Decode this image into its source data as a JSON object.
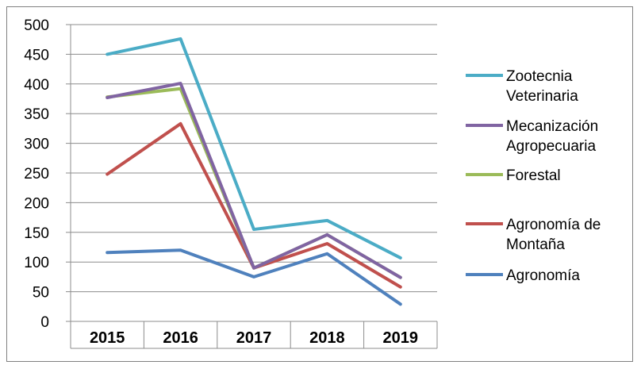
{
  "chart_data": {
    "type": "line",
    "categories": [
      "2015",
      "2016",
      "2017",
      "2018",
      "2019"
    ],
    "ylim": [
      0,
      500
    ],
    "yticks": [
      0,
      50,
      100,
      150,
      200,
      250,
      300,
      350,
      400,
      450,
      500
    ],
    "grid": true,
    "legend_position": "right",
    "series": [
      {
        "name": "Zootecnia Veterinaria",
        "legend_lines": [
          "Zootecnia",
          "Veterinaria"
        ],
        "color": "#4BACC6",
        "values": [
          450,
          476,
          155,
          170,
          107
        ]
      },
      {
        "name": "Mecanización Agropecuaria",
        "legend_lines": [
          "Mecanización",
          "Agropecuaria"
        ],
        "color": "#8064A2",
        "values": [
          377,
          401,
          90,
          146,
          74
        ]
      },
      {
        "name": "Forestal",
        "legend_lines": [
          "Forestal"
        ],
        "color": "#9BBB59",
        "values": [
          378,
          392,
          90,
          146,
          74
        ]
      },
      {
        "name": "Agronomía de Montaña",
        "legend_lines": [
          "Agronomía de",
          "Montaña"
        ],
        "color": "#C0504D",
        "values": [
          248,
          333,
          90,
          131,
          58
        ]
      },
      {
        "name": "Agronomía",
        "legend_lines": [
          "Agronomía"
        ],
        "color": "#4F81BD",
        "values": [
          116,
          120,
          75,
          114,
          29
        ]
      }
    ]
  }
}
